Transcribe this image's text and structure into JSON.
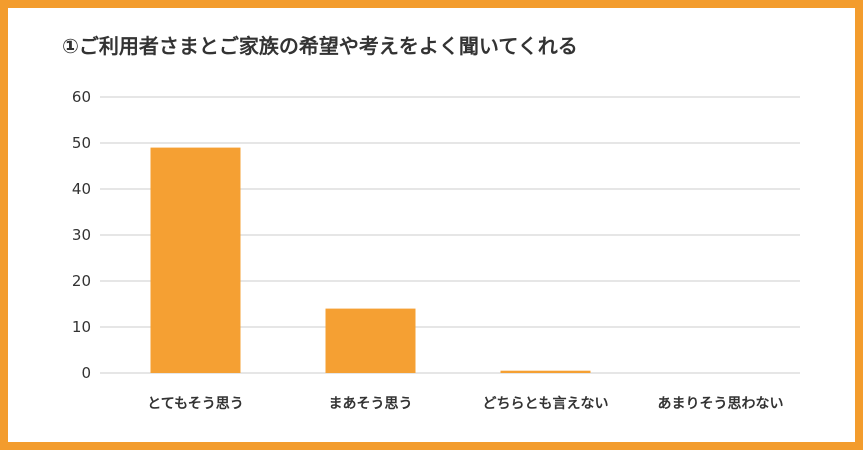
{
  "colors": {
    "border": "#f39c2d",
    "bar": "#f5a033",
    "grid": "#cccccc",
    "text": "#333333"
  },
  "chart_data": {
    "type": "bar",
    "title": "①ご利用者さまとご家族の希望や考えをよく聞いてくれる",
    "xlabel": "",
    "ylabel": "",
    "categories": [
      "とてもそう思う",
      "まあそう思う",
      "どちらとも言えない",
      "あまりそう思わない"
    ],
    "values": [
      49,
      14,
      0.5,
      0
    ],
    "ylim": [
      0,
      60
    ],
    "yticks": [
      "0",
      "10",
      "20",
      "30",
      "40",
      "50",
      "60"
    ],
    "grid": true,
    "legend": "none"
  }
}
